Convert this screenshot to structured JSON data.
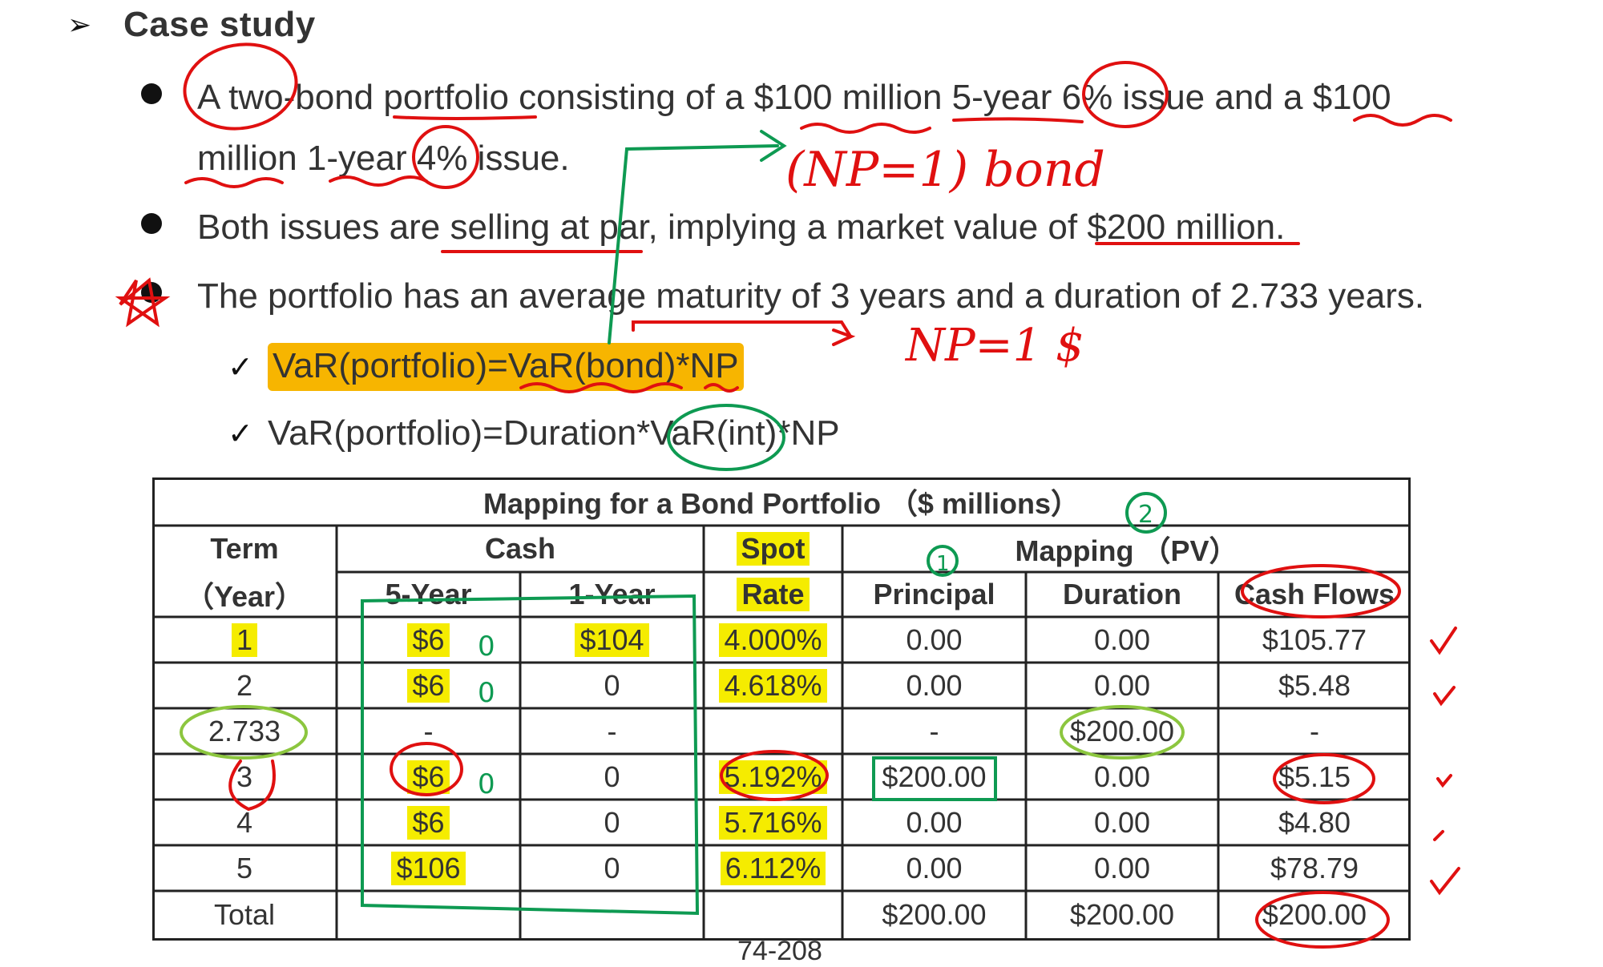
{
  "heading": {
    "title": "Case study"
  },
  "bullets": [
    {
      "text": "A two-bond portfolio consisting of a $100 million 5-year 6% issue and a $100 million 1-year 4% issue."
    },
    {
      "text": "Both issues are selling at par, implying a market value of $200 million."
    },
    {
      "text": "The portfolio has an average maturity of 3 years and a duration of 2.733 years."
    }
  ],
  "subpoints": [
    {
      "text": "VaR(portfolio)=VaR(bond)*NP"
    },
    {
      "text": "VaR(portfolio)=Duration*VaR(int)*NP"
    }
  ],
  "table": {
    "title": "Mapping for a Bond Portfolio （$ millions）",
    "header": {
      "term": "Term",
      "term_unit": "（Year）",
      "cash": "Cash",
      "five_year": "5-Year",
      "one_year": "1-Year",
      "spot": "Spot",
      "rate": "Rate",
      "mapping": "Mapping （PV）",
      "principal": "Principal",
      "duration": "Duration",
      "cash_flows": "Cash Flows"
    },
    "rows": [
      {
        "term": "1",
        "five_year": "$6",
        "one_year": "$104",
        "rate": "4.000%",
        "principal": "0.00",
        "duration": "0.00",
        "cash_flows": "$105.77"
      },
      {
        "term": "2",
        "five_year": "$6",
        "one_year": "0",
        "rate": "4.618%",
        "principal": "0.00",
        "duration": "0.00",
        "cash_flows": "$5.48"
      },
      {
        "term": "2.733",
        "five_year": "-",
        "one_year": "-",
        "rate": "",
        "principal": "-",
        "duration": "$200.00",
        "cash_flows": "-"
      },
      {
        "term": "3",
        "five_year": "$6",
        "one_year": "0",
        "rate": "5.192%",
        "principal": "$200.00",
        "duration": "0.00",
        "cash_flows": "$5.15"
      },
      {
        "term": "4",
        "five_year": "$6",
        "one_year": "0",
        "rate": "5.716%",
        "principal": "0.00",
        "duration": "0.00",
        "cash_flows": "$4.80"
      },
      {
        "term": "5",
        "five_year": "$106",
        "one_year": "0",
        "rate": "6.112%",
        "principal": "0.00",
        "duration": "0.00",
        "cash_flows": "$78.79"
      },
      {
        "term": "Total",
        "five_year": "",
        "one_year": "",
        "rate": "",
        "principal": "$200.00",
        "duration": "$200.00",
        "cash_flows": "$200.00"
      }
    ]
  },
  "page_number": "74-208",
  "handwriting": {
    "np_bond": "(NP=1) bond",
    "np_dollar": "NP=1 $",
    "circle_one": "1",
    "circle_two": "2",
    "zero_marks": [
      "0",
      "0",
      "0"
    ]
  },
  "colors": {
    "highlight_orange": "#f7b500",
    "highlight_yellow": "#f5ec00",
    "pen_red": "#e01010",
    "pen_green": "#0e9a52",
    "pen_lightgreen": "#8cc63f"
  }
}
